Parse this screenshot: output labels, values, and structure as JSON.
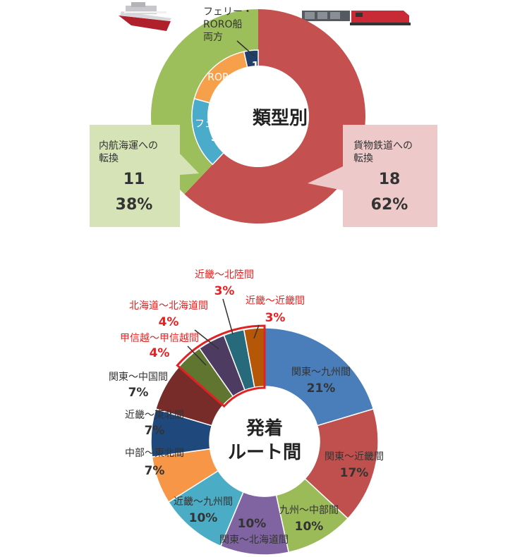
{
  "chart_data": [
    {
      "type": "pie",
      "title": "類型別",
      "categories": [
        "フェリー・RORO船両方",
        "RORO船",
        "フェリー",
        "内航海運への転換",
        "貨物鉄道への転換"
      ],
      "values": [
        1,
        5,
        5,
        11,
        18
      ],
      "groups": [
        {
          "name": "貨物鉄道への転換",
          "value": 18,
          "percent": "62%"
        },
        {
          "name": "内航海運への転換",
          "value": 11,
          "percent": "38%",
          "breakdown": [
            {
              "name": "フェリー",
              "value": 5
            },
            {
              "name": "RORO船",
              "value": 5
            },
            {
              "name": "フェリー・RORO船両方",
              "value": 1
            }
          ]
        }
      ],
      "colors": {
        "rail": "#c45050",
        "sea": "#9dbf5b",
        "ferry": "#4aacca",
        "roro": "#f7a04c",
        "both": "#213f6b",
        "rail_box": "#eec9c9",
        "sea_box": "#d5e3b7"
      }
    },
    {
      "type": "pie",
      "title": "発着ルート間",
      "categories": [
        "関東～九州間",
        "関東～近畿間",
        "九州～中部間",
        "関東～北海道間",
        "近畿～九州間",
        "中部～東北間",
        "近畿～東北間",
        "関東～中国間",
        "甲信越～甲信越間",
        "北海道～北海道間",
        "近畿～北陸間",
        "近畿～近畿間"
      ],
      "values": [
        21,
        17,
        10,
        10,
        10,
        7,
        7,
        7,
        4,
        4,
        3,
        3
      ],
      "labels": [
        "21%",
        "17%",
        "10%",
        "10%",
        "10%",
        "7%",
        "7%",
        "7%",
        "4%",
        "4%",
        "3%",
        "3%"
      ],
      "highlighted": [
        "甲信越～甲信越間",
        "北海道～北海道間",
        "近畿～北陸間",
        "近畿～近畿間"
      ],
      "colors": [
        "#4a7ebb",
        "#c0504d",
        "#9bbb59",
        "#8064a2",
        "#4bacc6",
        "#f79646",
        "#1f497d",
        "#772c2a",
        "#5f7530",
        "#4e3b62",
        "#276a7c",
        "#b65708"
      ],
      "highlight_color": "#e22222"
    }
  ],
  "icons": {
    "ship": "ship-icon",
    "train": "freight-train-icon"
  }
}
